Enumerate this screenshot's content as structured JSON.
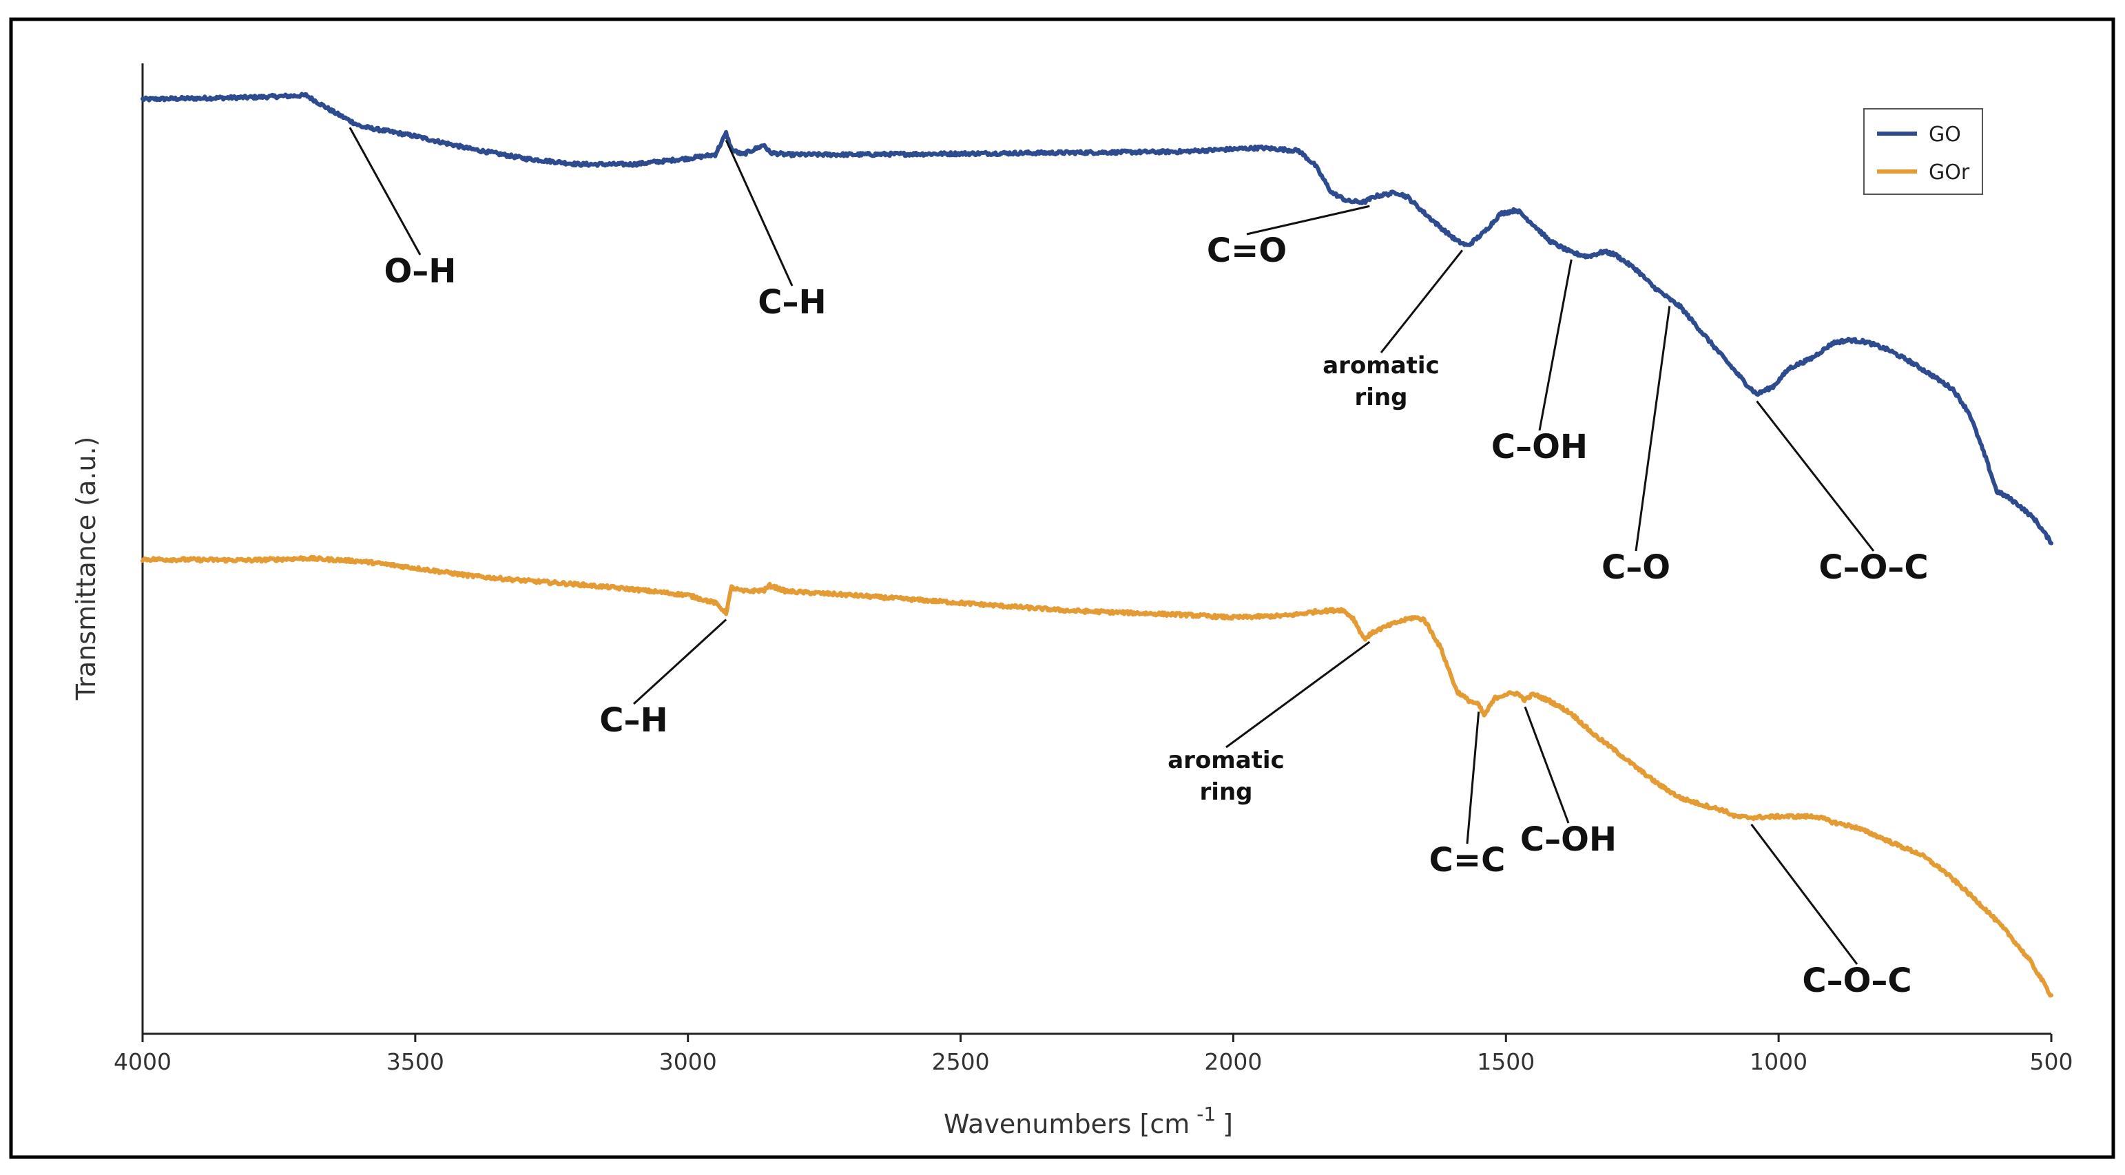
{
  "chart_data": {
    "type": "line",
    "title": "",
    "xlabel": "Wavenumbers [cm",
    "xlabel_sup": "-1",
    "xlabel_close": "]",
    "ylabel": "Transmittance (a.u.)",
    "xlim": [
      4000,
      500
    ],
    "ylim": [
      0,
      100
    ],
    "xticks": [
      4000,
      3500,
      3000,
      2500,
      2000,
      1500,
      1000,
      500
    ],
    "grid": false,
    "legend_position": "top-right",
    "series": [
      {
        "name": "GO",
        "color": "#2e4b8f",
        "x": [
          4000,
          3800,
          3700,
          3650,
          3600,
          3500,
          3400,
          3300,
          3200,
          3100,
          3000,
          2950,
          2930,
          2920,
          2900,
          2860,
          2850,
          2820,
          2700,
          2500,
          2300,
          2100,
          1950,
          1880,
          1850,
          1820,
          1790,
          1760,
          1740,
          1700,
          1680,
          1650,
          1620,
          1590,
          1570,
          1540,
          1510,
          1480,
          1450,
          1420,
          1380,
          1350,
          1320,
          1300,
          1260,
          1230,
          1200,
          1180,
          1150,
          1100,
          1060,
          1040,
          1010,
          980,
          940,
          900,
          870,
          840,
          800,
          760,
          720,
          680,
          650,
          620,
          600,
          580,
          560,
          530,
          500
        ],
        "values": [
          96.3,
          96.5,
          96.7,
          95.0,
          93.5,
          92.5,
          91.2,
          90.2,
          89.6,
          89.6,
          90.2,
          90.6,
          92.8,
          91.1,
          90.6,
          91.6,
          90.8,
          90.6,
          90.6,
          90.7,
          90.8,
          90.9,
          91.3,
          91.0,
          89.5,
          86.7,
          85.8,
          85.7,
          86.3,
          86.7,
          86.2,
          84.6,
          83.1,
          81.7,
          81.2,
          82.6,
          84.5,
          84.9,
          83.4,
          81.7,
          80.5,
          80.1,
          80.6,
          80.3,
          78.7,
          77.0,
          75.7,
          74.9,
          72.9,
          69.6,
          67.0,
          65.9,
          66.7,
          68.6,
          69.6,
          71.2,
          71.5,
          71.3,
          70.5,
          69.3,
          67.9,
          66.4,
          63.9,
          59.3,
          55.9,
          55.3,
          54.5,
          53.0,
          50.6
        ]
      },
      {
        "name": "GOr",
        "color": "#e49b34",
        "x": [
          4000,
          3800,
          3700,
          3600,
          3500,
          3400,
          3300,
          3200,
          3100,
          3000,
          2950,
          2930,
          2925,
          2920,
          2900,
          2860,
          2850,
          2820,
          2700,
          2500,
          2300,
          2100,
          2000,
          1900,
          1850,
          1800,
          1780,
          1760,
          1740,
          1700,
          1670,
          1650,
          1620,
          1590,
          1570,
          1550,
          1540,
          1520,
          1500,
          1480,
          1465,
          1450,
          1420,
          1380,
          1340,
          1300,
          1260,
          1220,
          1180,
          1140,
          1100,
          1080,
          1060,
          1040,
          1000,
          960,
          930,
          900,
          860,
          820,
          780,
          740,
          700,
          660,
          620,
          580,
          540,
          520,
          500
        ],
        "values": [
          48.9,
          48.8,
          49.0,
          48.7,
          48.0,
          47.2,
          46.7,
          46.3,
          45.8,
          45.2,
          44.4,
          43.4,
          44.7,
          46.0,
          45.6,
          45.7,
          46.2,
          45.6,
          45.2,
          44.4,
          43.6,
          43.2,
          42.9,
          43.1,
          43.5,
          43.7,
          42.8,
          40.7,
          41.5,
          42.4,
          42.9,
          42.7,
          39.8,
          35.3,
          34.4,
          33.9,
          32.8,
          34.6,
          35.0,
          35.1,
          34.4,
          35.0,
          34.3,
          33.0,
          30.9,
          29.2,
          27.4,
          25.7,
          24.3,
          23.6,
          23.0,
          22.4,
          22.3,
          22.3,
          22.4,
          22.4,
          22.4,
          21.8,
          21.3,
          20.4,
          19.4,
          18.5,
          16.9,
          14.9,
          12.8,
          10.4,
          7.6,
          5.8,
          3.9
        ]
      }
    ],
    "annotations": [
      {
        "text": "O–H",
        "series": "GO",
        "x": 3620,
        "size": "large"
      },
      {
        "text": "C–H",
        "series": "GO",
        "x": 2930,
        "size": "large"
      },
      {
        "text": "C=O",
        "series": "GO",
        "x": 1750,
        "size": "large"
      },
      {
        "text": "aromatic",
        "text2": "ring",
        "series": "GO",
        "x": 1580,
        "size": "small"
      },
      {
        "text": "C–OH",
        "series": "GO",
        "x": 1380,
        "size": "large"
      },
      {
        "text": "C–O",
        "series": "GO",
        "x": 1200,
        "size": "large"
      },
      {
        "text": "C–O–C",
        "series": "GO",
        "x": 1040,
        "size": "large"
      },
      {
        "text": "C–H",
        "series": "GOr",
        "x": 2930,
        "size": "large"
      },
      {
        "text": "aromatic",
        "text2": "ring",
        "series": "GOr",
        "x": 1750,
        "size": "small"
      },
      {
        "text": "C=C",
        "series": "GOr",
        "x": 1550,
        "size": "large"
      },
      {
        "text": "C–OH",
        "series": "GOr",
        "x": 1465,
        "size": "large"
      },
      {
        "text": "C–O–C",
        "series": "GOr",
        "x": 1050,
        "size": "large"
      }
    ]
  }
}
